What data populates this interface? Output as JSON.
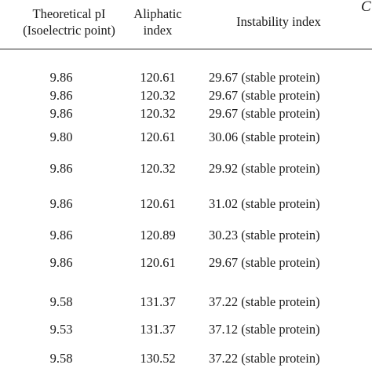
{
  "cut_glyph": "C",
  "headers": {
    "pi": [
      "Theoretical pI",
      "(Isoelectric point)"
    ],
    "aliphatic": [
      "Aliphatic",
      "index"
    ],
    "instability": "Instability index"
  },
  "rows": [
    {
      "pi": "9.86",
      "aliphatic": "120.61",
      "instability": "29.67 (stable protein)"
    },
    {
      "pi": "9.86",
      "aliphatic": "120.32",
      "instability": "29.67 (stable protein)"
    },
    {
      "pi": "9.86",
      "aliphatic": "120.32",
      "instability": "29.67 (stable protein)"
    },
    {
      "pi": "9.80",
      "aliphatic": "120.61",
      "instability": "30.06 (stable protein)"
    },
    {
      "pi": "9.86",
      "aliphatic": "120.32",
      "instability": "29.92 (stable protein)"
    },
    {
      "pi": "9.86",
      "aliphatic": "120.61",
      "instability": "31.02 (stable protein)"
    },
    {
      "pi": "9.86",
      "aliphatic": "120.89",
      "instability": "30.23 (stable protein)"
    },
    {
      "pi": "9.86",
      "aliphatic": "120.61",
      "instability": "29.67 (stable protein)"
    },
    {
      "pi": "9.58",
      "aliphatic": "131.37",
      "instability": "37.22 (stable protein)"
    },
    {
      "pi": "9.53",
      "aliphatic": "131.37",
      "instability": "37.12 (stable protein)"
    },
    {
      "pi": "9.58",
      "aliphatic": "130.52",
      "instability": "37.22 (stable protein)"
    }
  ]
}
